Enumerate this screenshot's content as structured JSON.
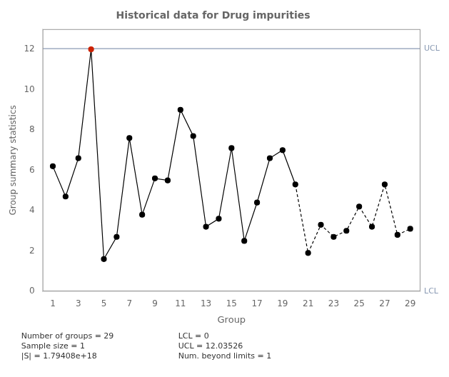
{
  "chart_data": {
    "type": "line",
    "title": "Historical data for Drug impurities",
    "x_label": "Group",
    "y_label": "Group summary statistics",
    "x": [
      1,
      2,
      3,
      4,
      5,
      6,
      7,
      8,
      9,
      10,
      11,
      12,
      13,
      14,
      15,
      16,
      17,
      18,
      19,
      20,
      21,
      22,
      23,
      24,
      25,
      26,
      27,
      28,
      29
    ],
    "series": [
      {
        "values": [
          6.2,
          4.7,
          6.6,
          12.0,
          1.6,
          2.7,
          7.6,
          3.8,
          5.6,
          5.5,
          9.0,
          7.7,
          3.2,
          3.6,
          7.1,
          2.5,
          4.4,
          6.6,
          7.0,
          5.3,
          1.9,
          3.3,
          2.7,
          3.0,
          4.2,
          3.2,
          5.3,
          2.8,
          3.1
        ],
        "color": "#000000",
        "colors": [
          "#000000",
          "#000000",
          "#000000",
          "#cc2200",
          "#000000",
          "#000000",
          "#000000",
          "#000000",
          "#000000",
          "#000000",
          "#000000",
          "#000000",
          "#000000",
          "#000000",
          "#000000",
          "#000000",
          "#000000",
          "#000000",
          "#000000",
          "#000000",
          "#000000",
          "#000000",
          "#000000",
          "#000000",
          "#000000",
          "#000000",
          "#000000",
          "#000000",
          "#000000"
        ],
        "marker": "circle",
        "line_style": "solid",
        "dashed_from": 20
      }
    ],
    "hlines": [
      {
        "value": 12.03526,
        "label": "UCL",
        "color": "#8B9BB4"
      },
      {
        "value": 0,
        "label": "LCL",
        "color": "#8B9BB4"
      }
    ],
    "annotations": [
      "Number of groups = 29\nSample size = 1\n|S| = 1.79408e+18",
      "LCL = 0\nUCL = 12.03526\nNum. beyond limits = 1"
    ],
    "xlim": [
      0.2,
      29.8
    ],
    "xticks": [
      1,
      3,
      5,
      7,
      9,
      11,
      13,
      15,
      17,
      19,
      21,
      23,
      25,
      27,
      29
    ],
    "ylim": [
      0,
      13
    ],
    "yticks": [
      0,
      2,
      4,
      6,
      8,
      10,
      12
    ],
    "grid": false,
    "legend": "none"
  }
}
